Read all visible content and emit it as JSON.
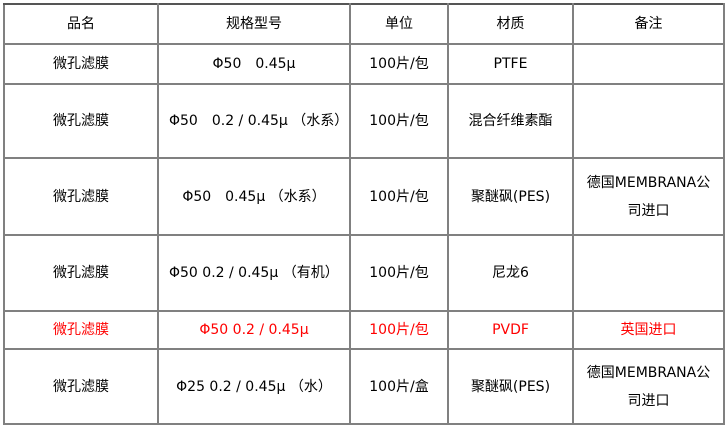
{
  "headers": [
    "品名",
    "规格型号",
    "单位",
    "材质",
    "备注"
  ],
  "rows": [
    {
      "name": "微孔滤膜",
      "spec": "Φ50　0.45μ",
      "unit": "100片/包",
      "material": "PTFE",
      "note": "",
      "highlight": false
    },
    {
      "name": "微孔滤膜",
      "spec": "Φ50　0.2 / 0.45μ （水系）",
      "unit": "100片/包",
      "material": "混合纤维素酯",
      "note": "",
      "highlight": false
    },
    {
      "name": "微孔滤膜",
      "spec": "Φ50　0.45μ （水系）",
      "unit": "100片/包",
      "material": "聚醚砜(PES)",
      "note": "德国MEMBRANA公司进口",
      "highlight": false
    },
    {
      "name": "微孔滤膜",
      "spec": "Φ50 0.2 / 0.45μ （有机）",
      "unit": "100片/包",
      "material": "尼龙6",
      "note": "",
      "highlight": false
    },
    {
      "name": "微孔滤膜",
      "spec": "Φ50 0.2 / 0.45μ",
      "unit": "100片/包",
      "material": "PVDF",
      "note": "英国进口",
      "highlight": true
    },
    {
      "name": "微孔滤膜",
      "spec": "Φ25 0.2 / 0.45μ （水）",
      "unit": "100片/盒",
      "material": "聚醚砜(PES)",
      "note": "德国MEMBRANA公司进口",
      "highlight": false
    }
  ],
  "colors": {
    "highlight_text": "#ff0000",
    "border": "#808080"
  }
}
